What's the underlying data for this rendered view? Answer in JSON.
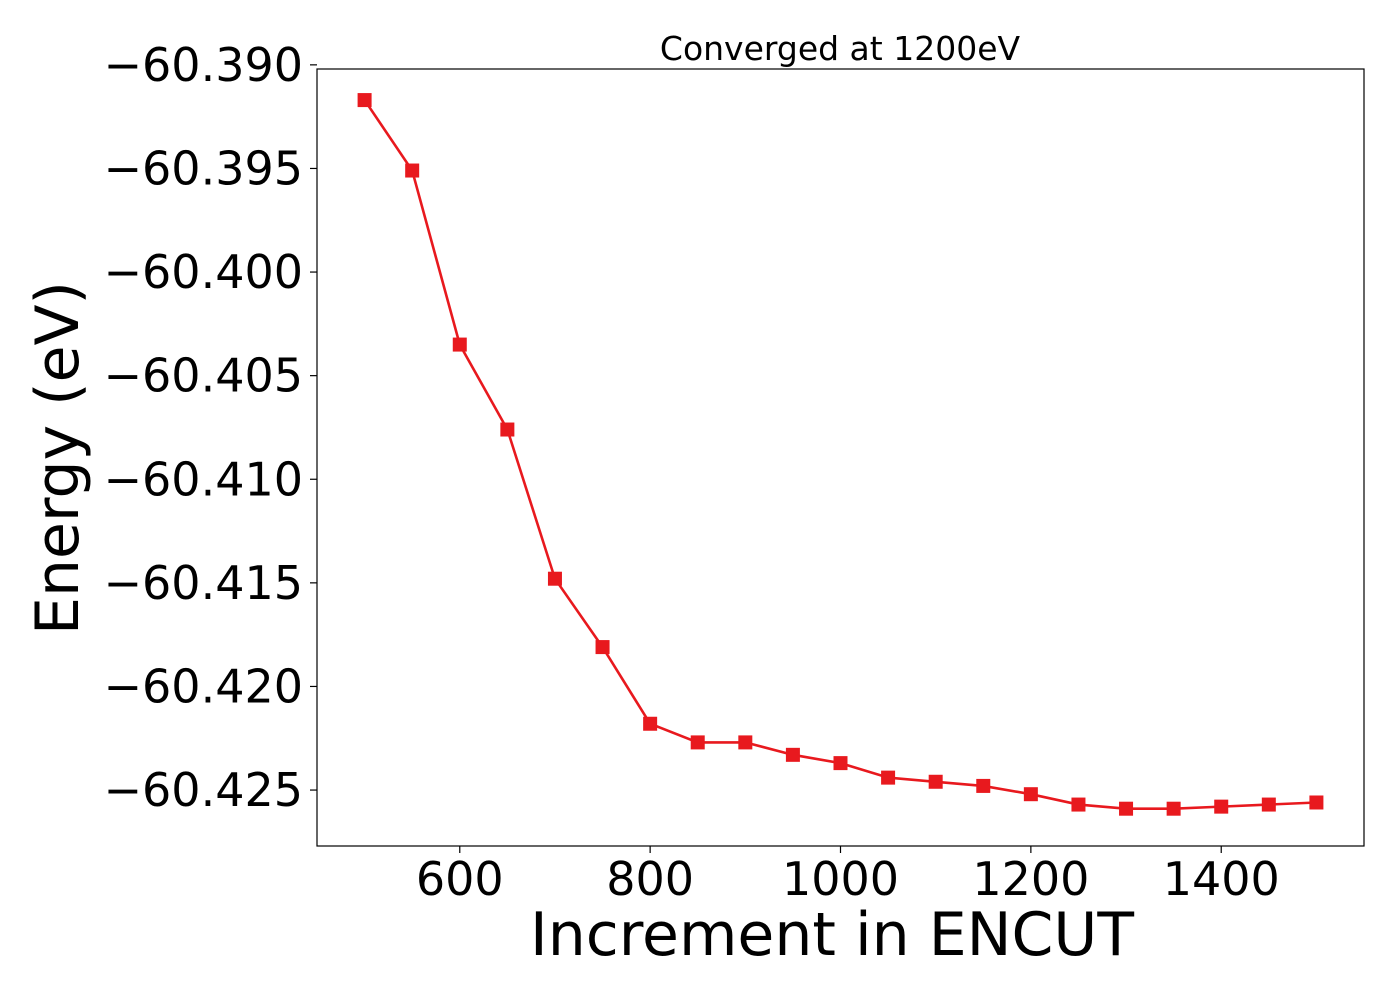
{
  "chart_data": {
    "type": "line",
    "title": "Converged at 1200eV",
    "xlabel": "Increment in ENCUT",
    "ylabel": "Energy (eV)",
    "x": [
      500,
      550,
      600,
      650,
      700,
      750,
      800,
      850,
      900,
      950,
      1000,
      1050,
      1100,
      1150,
      1200,
      1250,
      1300,
      1350,
      1400,
      1450,
      1500
    ],
    "series": [
      {
        "values": [
          -60.3917,
          -60.3951,
          -60.4035,
          -60.4076,
          -60.4148,
          -60.4181,
          -60.4218,
          -60.4227,
          -60.4227,
          -60.4233,
          -60.4237,
          -60.4244,
          -60.4246,
          -60.4248,
          -60.4252,
          -60.4257,
          -60.4259,
          -60.4259,
          -60.4258,
          -60.4257,
          -60.4256
        ],
        "color": "#e8191e",
        "marker": "square"
      }
    ],
    "xlim": [
      450,
      1550
    ],
    "ylim": [
      -60.4277,
      -60.3902
    ],
    "xticks": [
      600,
      800,
      1000,
      1200,
      1400
    ],
    "xtick_labels": [
      "600",
      "800",
      "1000",
      "1200",
      "1400"
    ],
    "yticks": [
      -60.39,
      -60.395,
      -60.4,
      -60.405,
      -60.41,
      -60.415,
      -60.42,
      -60.425
    ],
    "ytick_labels": [
      "−60.390",
      "−60.395",
      "−60.400",
      "−60.405",
      "−60.410",
      "−60.415",
      "−60.420",
      "−60.425"
    ],
    "grid": false,
    "legend": "none"
  }
}
